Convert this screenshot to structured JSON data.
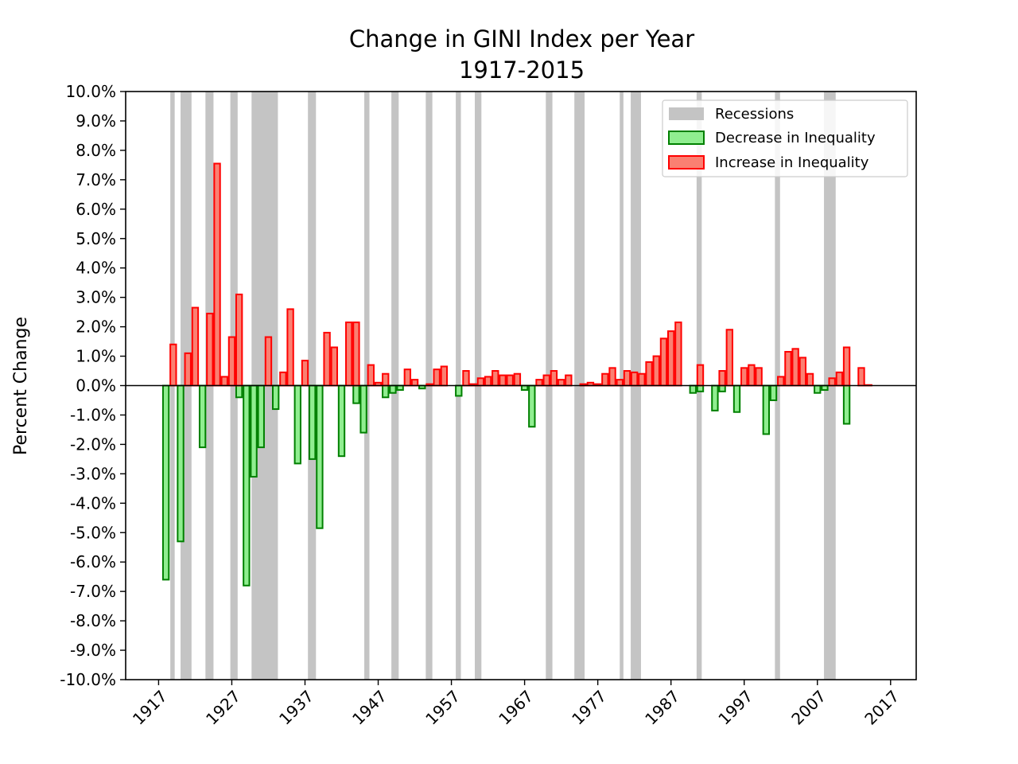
{
  "chart_data": {
    "type": "bar",
    "title": "Change in GINI Index per Year",
    "subtitle": "1917-2015",
    "xlabel": "",
    "ylabel": "Percent Change",
    "xlim": [
      1912.5,
      2020.5
    ],
    "ylim": [
      -10.0,
      10.0
    ],
    "y_unit": "%",
    "x_ticks": [
      1917,
      1927,
      1937,
      1947,
      1957,
      1967,
      1977,
      1987,
      1997,
      2007,
      2017
    ],
    "y_ticks": [
      "10.0%",
      "9.0%",
      "8.0%",
      "7.0%",
      "6.0%",
      "5.0%",
      "4.0%",
      "3.0%",
      "2.0%",
      "1.0%",
      "0.0%",
      "-1.0%",
      "-2.0%",
      "-3.0%",
      "-4.0%",
      "-5.0%",
      "-6.0%",
      "-7.0%",
      "-8.0%",
      "-9.0%",
      "-10.0%"
    ],
    "legend_position": "top-right",
    "legend": [
      {
        "label": "Recessions",
        "kind": "recession"
      },
      {
        "label": "Decrease in Inequality",
        "kind": "decrease"
      },
      {
        "label": "Increase in Inequality",
        "kind": "increase"
      }
    ],
    "colors": {
      "recession": "#c4c4c4",
      "decrease_fill": "#90ee90",
      "decrease_edge": "#008000",
      "increase_fill": "#fa8072",
      "increase_edge": "#ff0000"
    },
    "recessions": [
      [
        1918.6,
        1919.2
      ],
      [
        1920.0,
        1921.5
      ],
      [
        1923.4,
        1924.5
      ],
      [
        1926.8,
        1927.8
      ],
      [
        1929.7,
        1933.3
      ],
      [
        1937.4,
        1938.5
      ],
      [
        1945.1,
        1945.8
      ],
      [
        1948.8,
        1949.8
      ],
      [
        1953.5,
        1954.4
      ],
      [
        1957.6,
        1958.3
      ],
      [
        1960.2,
        1961.1
      ],
      [
        1969.9,
        1970.8
      ],
      [
        1973.8,
        1975.2
      ],
      [
        1980.0,
        1980.5
      ],
      [
        1981.5,
        1982.9
      ],
      [
        1990.5,
        1991.2
      ],
      [
        2001.2,
        2001.9
      ],
      [
        2007.9,
        2009.5
      ]
    ],
    "series": [
      {
        "name": "Decrease in Inequality",
        "values": [
          [
            1918,
            -6.6
          ],
          [
            1920,
            -5.3
          ],
          [
            1923,
            -2.1
          ],
          [
            1928,
            -0.4
          ],
          [
            1929,
            -6.8
          ],
          [
            1930,
            -3.1
          ],
          [
            1931,
            -2.1
          ],
          [
            1933,
            -0.8
          ],
          [
            1936,
            -2.65
          ],
          [
            1938,
            -2.5
          ],
          [
            1939,
            -4.85
          ],
          [
            1942,
            -2.4
          ],
          [
            1944,
            -0.6
          ],
          [
            1945,
            -1.6
          ],
          [
            1948,
            -0.4
          ],
          [
            1949,
            -0.25
          ],
          [
            1950,
            -0.15
          ],
          [
            1953,
            -0.1
          ],
          [
            1958,
            -0.35
          ],
          [
            1967,
            -0.15
          ],
          [
            1968,
            -1.4
          ],
          [
            1990,
            -0.25
          ],
          [
            1991,
            -0.2
          ],
          [
            1993,
            -0.85
          ],
          [
            1994,
            -0.2
          ],
          [
            1996,
            -0.9
          ],
          [
            2000,
            -1.65
          ],
          [
            2001,
            -0.5
          ],
          [
            2007,
            -0.25
          ],
          [
            2008,
            -0.15
          ],
          [
            2011,
            -1.3
          ]
        ]
      },
      {
        "name": "Increase in Inequality",
        "values": [
          [
            1919,
            1.4
          ],
          [
            1921,
            1.1
          ],
          [
            1922,
            2.65
          ],
          [
            1924,
            2.45
          ],
          [
            1925,
            7.55
          ],
          [
            1926,
            0.3
          ],
          [
            1927,
            1.65
          ],
          [
            1928,
            3.1
          ],
          [
            1932,
            1.65
          ],
          [
            1934,
            0.45
          ],
          [
            1935,
            2.6
          ],
          [
            1937,
            0.85
          ],
          [
            1940,
            1.8
          ],
          [
            1941,
            1.3
          ],
          [
            1943,
            2.15
          ],
          [
            1944,
            2.15
          ],
          [
            1946,
            0.7
          ],
          [
            1947,
            0.1
          ],
          [
            1948,
            0.4
          ],
          [
            1951,
            0.55
          ],
          [
            1952,
            0.2
          ],
          [
            1954,
            0.05
          ],
          [
            1955,
            0.55
          ],
          [
            1956,
            0.65
          ],
          [
            1959,
            0.5
          ],
          [
            1960,
            0.05
          ],
          [
            1961,
            0.25
          ],
          [
            1962,
            0.3
          ],
          [
            1963,
            0.5
          ],
          [
            1964,
            0.35
          ],
          [
            1965,
            0.35
          ],
          [
            1966,
            0.4
          ],
          [
            1969,
            0.2
          ],
          [
            1970,
            0.35
          ],
          [
            1971,
            0.5
          ],
          [
            1972,
            0.2
          ],
          [
            1973,
            0.35
          ],
          [
            1975,
            0.05
          ],
          [
            1976,
            0.1
          ],
          [
            1977,
            0.05
          ],
          [
            1978,
            0.4
          ],
          [
            1979,
            0.6
          ],
          [
            1980,
            0.2
          ],
          [
            1981,
            0.5
          ],
          [
            1982,
            0.45
          ],
          [
            1983,
            0.4
          ],
          [
            1984,
            0.8
          ],
          [
            1985,
            1.0
          ],
          [
            1986,
            1.6
          ],
          [
            1987,
            1.85
          ],
          [
            1988,
            2.15
          ],
          [
            1991,
            0.7
          ],
          [
            1994,
            0.5
          ],
          [
            1995,
            1.9
          ],
          [
            1997,
            0.6
          ],
          [
            1998,
            0.7
          ],
          [
            1999,
            0.6
          ],
          [
            2002,
            0.3
          ],
          [
            2003,
            1.15
          ],
          [
            2004,
            1.25
          ],
          [
            2005,
            0.95
          ],
          [
            2006,
            0.4
          ],
          [
            2009,
            0.25
          ],
          [
            2010,
            0.45
          ],
          [
            2011,
            1.3
          ],
          [
            2013,
            0.6
          ],
          [
            2014,
            0.02
          ]
        ]
      }
    ]
  }
}
